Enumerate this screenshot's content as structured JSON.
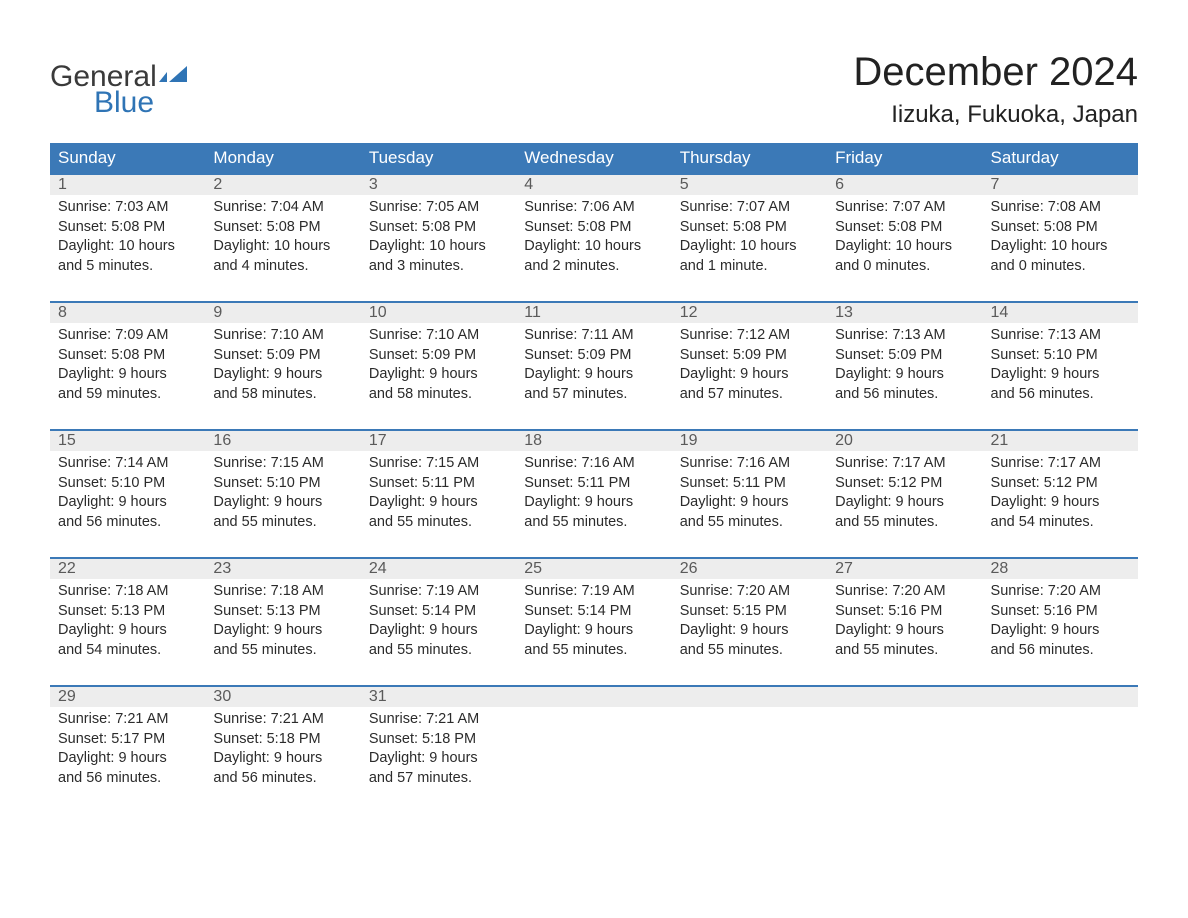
{
  "logo": {
    "text1": "General",
    "text2": "Blue",
    "accent_color": "#2f74b5"
  },
  "header": {
    "month": "December 2024",
    "location": "Iizuka, Fukuoka, Japan"
  },
  "colors": {
    "header_bg": "#3b79b7",
    "header_fg": "#ffffff",
    "daynum_bg": "#ededed",
    "daynum_fg": "#5a5a5a",
    "border_top": "#3b79b7",
    "text": "#2b2b2b",
    "page_bg": "#ffffff"
  },
  "weekdays": [
    "Sunday",
    "Monday",
    "Tuesday",
    "Wednesday",
    "Thursday",
    "Friday",
    "Saturday"
  ],
  "weeks": [
    [
      {
        "day": "1",
        "sunrise": "Sunrise: 7:03 AM",
        "sunset": "Sunset: 5:08 PM",
        "dl1": "Daylight: 10 hours",
        "dl2": "and 5 minutes."
      },
      {
        "day": "2",
        "sunrise": "Sunrise: 7:04 AM",
        "sunset": "Sunset: 5:08 PM",
        "dl1": "Daylight: 10 hours",
        "dl2": "and 4 minutes."
      },
      {
        "day": "3",
        "sunrise": "Sunrise: 7:05 AM",
        "sunset": "Sunset: 5:08 PM",
        "dl1": "Daylight: 10 hours",
        "dl2": "and 3 minutes."
      },
      {
        "day": "4",
        "sunrise": "Sunrise: 7:06 AM",
        "sunset": "Sunset: 5:08 PM",
        "dl1": "Daylight: 10 hours",
        "dl2": "and 2 minutes."
      },
      {
        "day": "5",
        "sunrise": "Sunrise: 7:07 AM",
        "sunset": "Sunset: 5:08 PM",
        "dl1": "Daylight: 10 hours",
        "dl2": "and 1 minute."
      },
      {
        "day": "6",
        "sunrise": "Sunrise: 7:07 AM",
        "sunset": "Sunset: 5:08 PM",
        "dl1": "Daylight: 10 hours",
        "dl2": "and 0 minutes."
      },
      {
        "day": "7",
        "sunrise": "Sunrise: 7:08 AM",
        "sunset": "Sunset: 5:08 PM",
        "dl1": "Daylight: 10 hours",
        "dl2": "and 0 minutes."
      }
    ],
    [
      {
        "day": "8",
        "sunrise": "Sunrise: 7:09 AM",
        "sunset": "Sunset: 5:08 PM",
        "dl1": "Daylight: 9 hours",
        "dl2": "and 59 minutes."
      },
      {
        "day": "9",
        "sunrise": "Sunrise: 7:10 AM",
        "sunset": "Sunset: 5:09 PM",
        "dl1": "Daylight: 9 hours",
        "dl2": "and 58 minutes."
      },
      {
        "day": "10",
        "sunrise": "Sunrise: 7:10 AM",
        "sunset": "Sunset: 5:09 PM",
        "dl1": "Daylight: 9 hours",
        "dl2": "and 58 minutes."
      },
      {
        "day": "11",
        "sunrise": "Sunrise: 7:11 AM",
        "sunset": "Sunset: 5:09 PM",
        "dl1": "Daylight: 9 hours",
        "dl2": "and 57 minutes."
      },
      {
        "day": "12",
        "sunrise": "Sunrise: 7:12 AM",
        "sunset": "Sunset: 5:09 PM",
        "dl1": "Daylight: 9 hours",
        "dl2": "and 57 minutes."
      },
      {
        "day": "13",
        "sunrise": "Sunrise: 7:13 AM",
        "sunset": "Sunset: 5:09 PM",
        "dl1": "Daylight: 9 hours",
        "dl2": "and 56 minutes."
      },
      {
        "day": "14",
        "sunrise": "Sunrise: 7:13 AM",
        "sunset": "Sunset: 5:10 PM",
        "dl1": "Daylight: 9 hours",
        "dl2": "and 56 minutes."
      }
    ],
    [
      {
        "day": "15",
        "sunrise": "Sunrise: 7:14 AM",
        "sunset": "Sunset: 5:10 PM",
        "dl1": "Daylight: 9 hours",
        "dl2": "and 56 minutes."
      },
      {
        "day": "16",
        "sunrise": "Sunrise: 7:15 AM",
        "sunset": "Sunset: 5:10 PM",
        "dl1": "Daylight: 9 hours",
        "dl2": "and 55 minutes."
      },
      {
        "day": "17",
        "sunrise": "Sunrise: 7:15 AM",
        "sunset": "Sunset: 5:11 PM",
        "dl1": "Daylight: 9 hours",
        "dl2": "and 55 minutes."
      },
      {
        "day": "18",
        "sunrise": "Sunrise: 7:16 AM",
        "sunset": "Sunset: 5:11 PM",
        "dl1": "Daylight: 9 hours",
        "dl2": "and 55 minutes."
      },
      {
        "day": "19",
        "sunrise": "Sunrise: 7:16 AM",
        "sunset": "Sunset: 5:11 PM",
        "dl1": "Daylight: 9 hours",
        "dl2": "and 55 minutes."
      },
      {
        "day": "20",
        "sunrise": "Sunrise: 7:17 AM",
        "sunset": "Sunset: 5:12 PM",
        "dl1": "Daylight: 9 hours",
        "dl2": "and 55 minutes."
      },
      {
        "day": "21",
        "sunrise": "Sunrise: 7:17 AM",
        "sunset": "Sunset: 5:12 PM",
        "dl1": "Daylight: 9 hours",
        "dl2": "and 54 minutes."
      }
    ],
    [
      {
        "day": "22",
        "sunrise": "Sunrise: 7:18 AM",
        "sunset": "Sunset: 5:13 PM",
        "dl1": "Daylight: 9 hours",
        "dl2": "and 54 minutes."
      },
      {
        "day": "23",
        "sunrise": "Sunrise: 7:18 AM",
        "sunset": "Sunset: 5:13 PM",
        "dl1": "Daylight: 9 hours",
        "dl2": "and 55 minutes."
      },
      {
        "day": "24",
        "sunrise": "Sunrise: 7:19 AM",
        "sunset": "Sunset: 5:14 PM",
        "dl1": "Daylight: 9 hours",
        "dl2": "and 55 minutes."
      },
      {
        "day": "25",
        "sunrise": "Sunrise: 7:19 AM",
        "sunset": "Sunset: 5:14 PM",
        "dl1": "Daylight: 9 hours",
        "dl2": "and 55 minutes."
      },
      {
        "day": "26",
        "sunrise": "Sunrise: 7:20 AM",
        "sunset": "Sunset: 5:15 PM",
        "dl1": "Daylight: 9 hours",
        "dl2": "and 55 minutes."
      },
      {
        "day": "27",
        "sunrise": "Sunrise: 7:20 AM",
        "sunset": "Sunset: 5:16 PM",
        "dl1": "Daylight: 9 hours",
        "dl2": "and 55 minutes."
      },
      {
        "day": "28",
        "sunrise": "Sunrise: 7:20 AM",
        "sunset": "Sunset: 5:16 PM",
        "dl1": "Daylight: 9 hours",
        "dl2": "and 56 minutes."
      }
    ],
    [
      {
        "day": "29",
        "sunrise": "Sunrise: 7:21 AM",
        "sunset": "Sunset: 5:17 PM",
        "dl1": "Daylight: 9 hours",
        "dl2": "and 56 minutes."
      },
      {
        "day": "30",
        "sunrise": "Sunrise: 7:21 AM",
        "sunset": "Sunset: 5:18 PM",
        "dl1": "Daylight: 9 hours",
        "dl2": "and 56 minutes."
      },
      {
        "day": "31",
        "sunrise": "Sunrise: 7:21 AM",
        "sunset": "Sunset: 5:18 PM",
        "dl1": "Daylight: 9 hours",
        "dl2": "and 57 minutes."
      },
      null,
      null,
      null,
      null
    ]
  ]
}
